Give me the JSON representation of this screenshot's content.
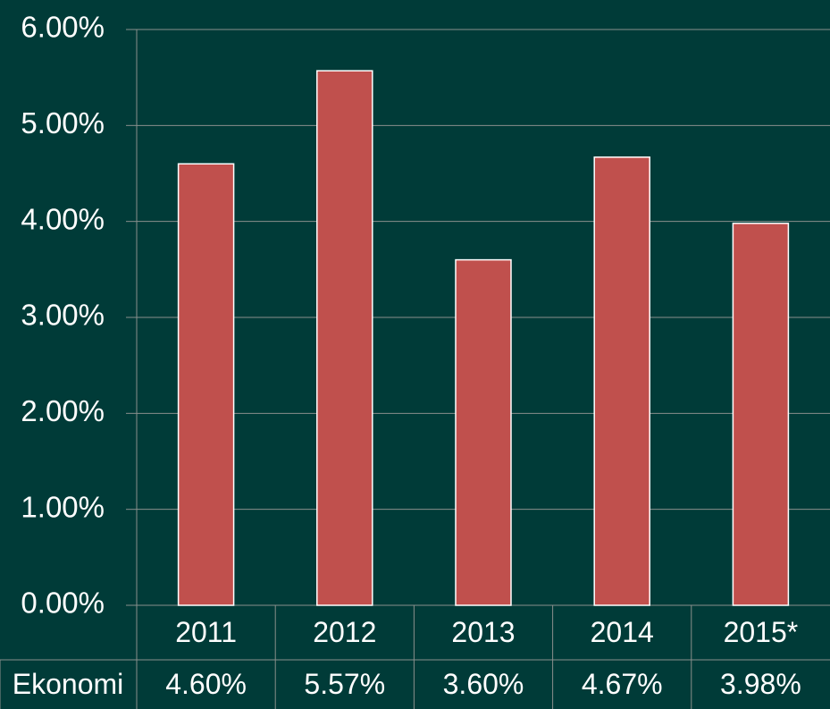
{
  "chart_data": {
    "type": "bar",
    "categories": [
      "2011",
      "2012",
      "2013",
      "2014",
      "2015*"
    ],
    "series": [
      {
        "name": "Ekonomi",
        "color": "#c0504d",
        "values": [
          4.6,
          5.57,
          3.6,
          4.67,
          3.98
        ],
        "value_labels": [
          "4.60%",
          "5.57%",
          "3.60%",
          "4.67%",
          "3.98%"
        ]
      }
    ],
    "ylim": [
      0,
      6
    ],
    "yticks": [
      {
        "value": 0,
        "label": "0.00%"
      },
      {
        "value": 1,
        "label": "1.00%"
      },
      {
        "value": 2,
        "label": "2.00%"
      },
      {
        "value": 3,
        "label": "3.00%"
      },
      {
        "value": 4,
        "label": "4.00%"
      },
      {
        "value": 5,
        "label": "5.00%"
      },
      {
        "value": 6,
        "label": "6.00%"
      }
    ],
    "grid": true
  }
}
